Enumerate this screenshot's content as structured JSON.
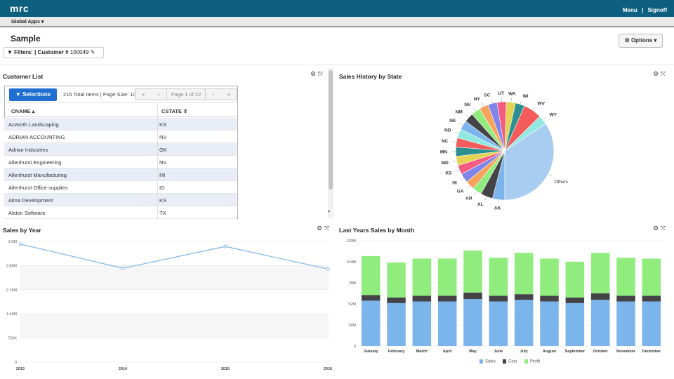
{
  "app": {
    "logo": "mrc",
    "menu": "Menu",
    "sep": "|",
    "signoff": "Signoff",
    "apps": "Global Apps ▾"
  },
  "page": {
    "title": "Sample",
    "options": "⚙ Options ▾"
  },
  "filters": {
    "label": "Filters:",
    "sep": "|",
    "field": "Customer #",
    "value": "100049"
  },
  "customer_list": {
    "title": "Customer List",
    "selections": "Selections",
    "summary": "216 Total Items | Page Size: 10",
    "page_label": "Page 1 of 22",
    "columns": [
      "CNAME ▴",
      "CSTATE ⇕"
    ],
    "rows": [
      [
        "Acworth Landscaping",
        "KS"
      ],
      [
        "ADRIAN ACCOUNTING",
        "NV"
      ],
      [
        "Adrian Industries",
        "OK"
      ],
      [
        "Allenhurst Engineering",
        "NV"
      ],
      [
        "Allenhurst Manufacturing",
        "MI"
      ],
      [
        "Allenhurst Office supplies",
        "ID"
      ],
      [
        "Alma Development",
        "KS"
      ],
      [
        "Alston Software",
        "TX"
      ]
    ]
  },
  "panel_controls": "⚙ ⤧",
  "chart_data": [
    {
      "type": "pie",
      "title": "Sales History by State",
      "labels": [
        "AK",
        "AL",
        "AR",
        "GA",
        "HI",
        "KS",
        "MD",
        "MN",
        "NC",
        "ND",
        "NE",
        "NM",
        "NV",
        "NY",
        "SC",
        "UT",
        "WA",
        "WI",
        "WV",
        "WY",
        "Others"
      ],
      "values": [
        4,
        4,
        3,
        3,
        3,
        3,
        3,
        3,
        3,
        3,
        3,
        3,
        3,
        3,
        3,
        3,
        3,
        3,
        6,
        3,
        34
      ],
      "colors": [
        "#7cb5ec",
        "#434348",
        "#90ed7d",
        "#f7a35c",
        "#8085e9",
        "#f15c80",
        "#e4d354",
        "#2b908f",
        "#f45b5b",
        "#91e8e1",
        "#7cb5ec",
        "#434348",
        "#90ed7d",
        "#f7a35c",
        "#8085e9",
        "#f15c80",
        "#e4d354",
        "#2b908f",
        "#f45b5b",
        "#91e8e1",
        "#a9cdf0"
      ]
    },
    {
      "type": "line",
      "title": "Sales by Year",
      "x": [
        "2013",
        "2014",
        "2015",
        "2016"
      ],
      "values": [
        3.52,
        2.8,
        3.45,
        2.78
      ],
      "yticks": [
        "0",
        "720K",
        "1.44M",
        "2.16M",
        "2.88M",
        "3.6M"
      ],
      "ylim": [
        0,
        3.6
      ]
    },
    {
      "type": "bar",
      "title": "Last Years Sales by Month",
      "categories": [
        "January",
        "February",
        "March",
        "April",
        "May",
        "June",
        "July",
        "August",
        "September",
        "October",
        "November",
        "December"
      ],
      "series": [
        {
          "name": "Sales",
          "color": "#7cb5ec",
          "values": [
            56,
            53,
            55,
            55,
            58,
            55,
            57,
            55,
            53,
            57,
            55,
            55
          ]
        },
        {
          "name": "Cost",
          "color": "#434348",
          "values": [
            7,
            7,
            7,
            7,
            8,
            7,
            7,
            7,
            7,
            8,
            7,
            7
          ]
        },
        {
          "name": "Profit",
          "color": "#90ed7d",
          "values": [
            48,
            43,
            46,
            46,
            52,
            47,
            51,
            46,
            44,
            50,
            47,
            46
          ]
        }
      ],
      "yticks": [
        "0",
        "26M",
        "52M",
        "78M",
        "104M",
        "130M"
      ],
      "ylim": [
        0,
        130
      ]
    }
  ]
}
